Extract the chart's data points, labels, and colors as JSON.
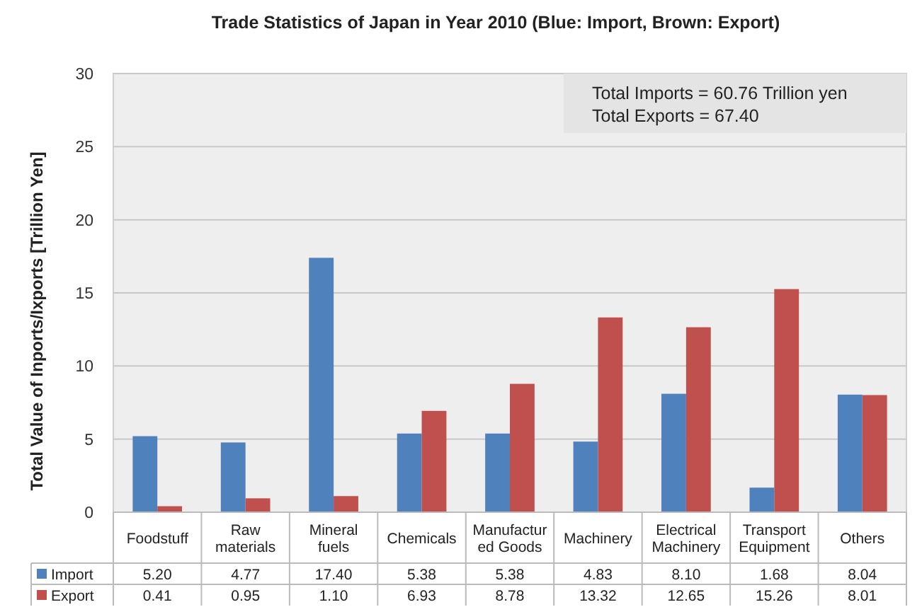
{
  "chart_data": {
    "type": "bar",
    "title": "Trade Statistics of Japan in Year 2010 (Blue: Import, Brown: Export)",
    "ylabel": "Total Value of Inports/Ixports [Trillion Yen]",
    "categories": [
      "Foodstuff",
      "Raw materials",
      "Mineral fuels",
      "Chemicals",
      "Manufactured Goods",
      "Machinery",
      "Electrical Machinery",
      "Transport Equipment",
      "Others"
    ],
    "series": [
      {
        "name": "Import",
        "color": "#4f81bd",
        "values": [
          5.2,
          4.77,
          17.4,
          5.38,
          5.38,
          4.83,
          8.1,
          1.68,
          8.04
        ],
        "value_labels": [
          "5.20",
          "4.77",
          "17.40",
          "5.38",
          "5.38",
          "4.83",
          "8.10",
          "1.68",
          "8.04"
        ]
      },
      {
        "name": "Export",
        "color": "#c0504d",
        "values": [
          0.41,
          0.95,
          1.1,
          6.93,
          8.78,
          13.32,
          12.65,
          15.26,
          8.01
        ],
        "value_labels": [
          "0.41",
          "0.95",
          "1.10",
          "6.93",
          "8.78",
          "13.32",
          "12.65",
          "15.26",
          "8.01"
        ]
      }
    ],
    "ylim": [
      0,
      30
    ],
    "yticks": [
      0,
      5,
      10,
      15,
      20,
      25,
      30
    ],
    "grid": "y",
    "legend": "bottom",
    "annotations": [
      "Total Imports = 60.76  Trillion yen",
      "Total Exports  = 67.40"
    ]
  }
}
